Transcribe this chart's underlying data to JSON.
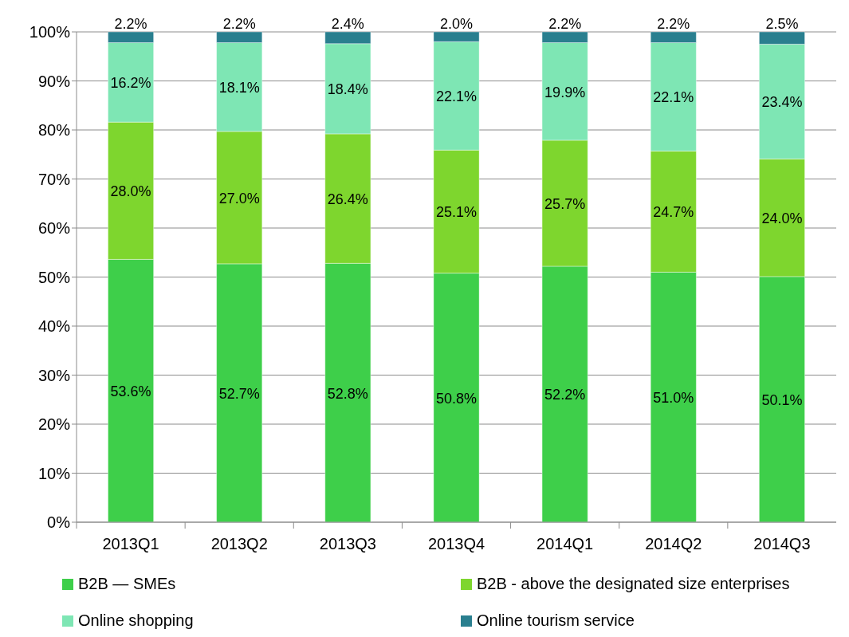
{
  "chart_data": {
    "type": "bar",
    "stacked": true,
    "categories": [
      "2013Q1",
      "2013Q2",
      "2013Q3",
      "2013Q4",
      "2014Q1",
      "2014Q2",
      "2014Q3"
    ],
    "series": [
      {
        "name": "B2B — SMEs",
        "color": "#3ecf4a",
        "values": [
          53.6,
          52.7,
          52.8,
          50.8,
          52.2,
          51.0,
          50.1
        ],
        "value_labels": [
          "53.6%",
          "52.7%",
          "52.8%",
          "50.8%",
          "52.2%",
          "51.0%",
          "50.1%"
        ]
      },
      {
        "name": "B2B - above the designated size enterprises",
        "color": "#7ed62e",
        "values": [
          28.0,
          27.0,
          26.4,
          25.1,
          25.7,
          24.7,
          24.0
        ],
        "value_labels": [
          "28.0%",
          "27.0%",
          "26.4%",
          "25.1%",
          "25.7%",
          "24.7%",
          "24.0%"
        ]
      },
      {
        "name": "Online shopping",
        "color": "#7ee6b4",
        "values": [
          16.2,
          18.1,
          18.4,
          22.1,
          19.9,
          22.1,
          23.4
        ],
        "value_labels": [
          "16.2%",
          "18.1%",
          "18.4%",
          "22.1%",
          "19.9%",
          "22.1%",
          "23.4%"
        ]
      },
      {
        "name": "Online tourism service",
        "color": "#2a7f8f",
        "values": [
          2.2,
          2.2,
          2.4,
          2.0,
          2.2,
          2.2,
          2.5
        ],
        "value_labels": [
          "2.2%",
          "2.2%",
          "2.4%",
          "2.0%",
          "2.2%",
          "2.2%",
          "2.5%"
        ]
      }
    ],
    "ylim": [
      0,
      100
    ],
    "yticks": [
      {
        "value": 0,
        "label": "0%"
      },
      {
        "value": 10,
        "label": "10%"
      },
      {
        "value": 20,
        "label": "20%"
      },
      {
        "value": 30,
        "label": "30%"
      },
      {
        "value": 40,
        "label": "40%"
      },
      {
        "value": 50,
        "label": "50%"
      },
      {
        "value": 60,
        "label": "60%"
      },
      {
        "value": 70,
        "label": "70%"
      },
      {
        "value": 80,
        "label": "80%"
      },
      {
        "value": 90,
        "label": "90%"
      },
      {
        "value": 100,
        "label": "100%"
      }
    ],
    "grid": "y",
    "legend": "bottom"
  }
}
